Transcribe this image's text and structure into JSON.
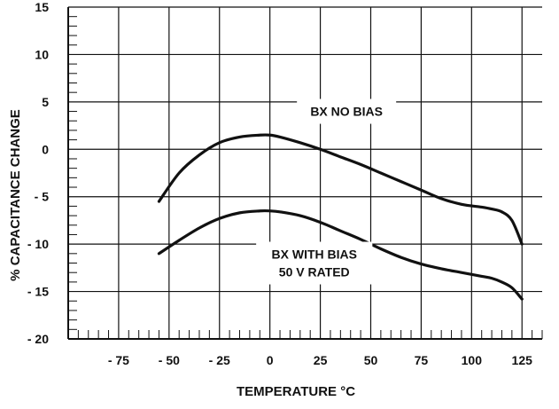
{
  "chart_data": {
    "type": "line",
    "xlabel": "TEMPERATURE °C",
    "ylabel": "% CAPACITANCE CHANGE",
    "xlim": [
      -100,
      135
    ],
    "ylim": [
      -20,
      15
    ],
    "grid": true,
    "x_ticks": [
      -75,
      -50,
      -25,
      0,
      25,
      50,
      75,
      100,
      125
    ],
    "x_tick_labels": [
      "- 75",
      "- 50",
      "- 25",
      "0",
      "25",
      "50",
      "75",
      "100",
      "125"
    ],
    "y_ticks": [
      15,
      10,
      5,
      0,
      -5,
      -10,
      -15,
      -20
    ],
    "y_tick_labels": [
      "15",
      "10",
      "5",
      "0",
      "- 5",
      "- 10",
      "- 15",
      "- 20"
    ],
    "series": [
      {
        "name": "BX NO BIAS",
        "x": [
          -55,
          -45,
          -35,
          -25,
          -15,
          -5,
          0,
          5,
          15,
          25,
          35,
          45,
          55,
          65,
          75,
          85,
          95,
          105,
          110,
          115,
          120,
          125
        ],
        "values": [
          -5.5,
          -2.5,
          -0.6,
          0.7,
          1.3,
          1.5,
          1.5,
          1.3,
          0.7,
          0.0,
          -0.8,
          -1.6,
          -2.5,
          -3.4,
          -4.3,
          -5.2,
          -5.8,
          -6.1,
          -6.3,
          -6.6,
          -7.5,
          -10.0
        ]
      },
      {
        "name": "BX WITH BIAS 50 V RATED",
        "x": [
          -55,
          -45,
          -35,
          -25,
          -15,
          -5,
          0,
          5,
          15,
          25,
          35,
          45,
          55,
          65,
          75,
          85,
          95,
          105,
          110,
          115,
          120,
          125
        ],
        "values": [
          -11.0,
          -9.6,
          -8.3,
          -7.3,
          -6.7,
          -6.5,
          -6.5,
          -6.6,
          -7.0,
          -7.7,
          -8.6,
          -9.5,
          -10.5,
          -11.4,
          -12.1,
          -12.6,
          -13.0,
          -13.4,
          -13.6,
          -14.0,
          -14.6,
          -15.8
        ]
      }
    ],
    "annotations": [
      {
        "lines": [
          "BX NO BIAS"
        ],
        "x": 38,
        "y": 4.0
      },
      {
        "lines": [
          "BX WITH BIAS",
          "50 V RATED"
        ],
        "x": 22,
        "y": -12.0
      }
    ]
  }
}
